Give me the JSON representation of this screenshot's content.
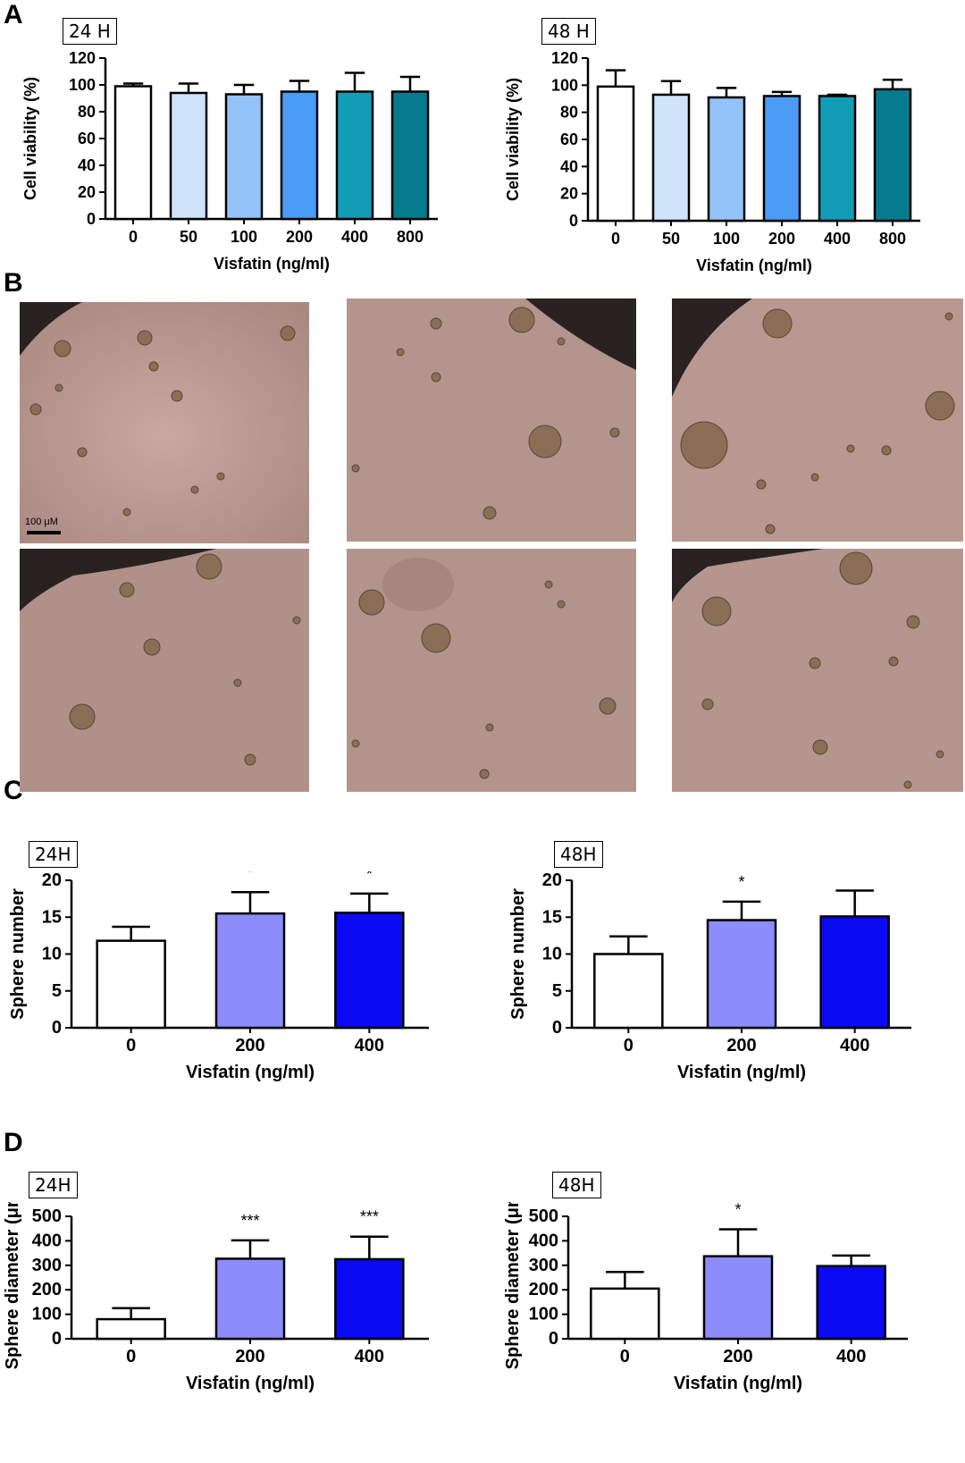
{
  "panels": {
    "A": "A",
    "B": "B",
    "C": "C",
    "D": "D"
  },
  "scale_bar": "100 μM",
  "colors": {
    "six_dose": [
      "#ffffff",
      "#cfe3fb",
      "#93c2f6",
      "#4a9cf6",
      "#139cb6",
      "#067b8d"
    ],
    "three_dose": [
      "#ffffff",
      "#8c8cfd",
      "#0a0af5"
    ]
  },
  "chart_data": [
    {
      "id": "A-24H",
      "type": "bar",
      "tag": "24 H",
      "categories": [
        "0",
        "50",
        "100",
        "200",
        "400",
        "800"
      ],
      "values": [
        99,
        94,
        93,
        95,
        95,
        95
      ],
      "errors": [
        2,
        7,
        7,
        8,
        14,
        11
      ],
      "significance": [
        "",
        "",
        "",
        "",
        "",
        ""
      ],
      "xlabel": "Visfatin (ng/ml)",
      "ylabel": "Cell viability (%)",
      "ylim": [
        0,
        120
      ],
      "yticks": [
        0,
        20,
        40,
        60,
        80,
        100,
        120
      ]
    },
    {
      "id": "A-48H",
      "type": "bar",
      "tag": "48 H",
      "categories": [
        "0",
        "50",
        "100",
        "200",
        "400",
        "800"
      ],
      "values": [
        99,
        93,
        91,
        92,
        92,
        97
      ],
      "errors": [
        12,
        10,
        7,
        3,
        1,
        7
      ],
      "significance": [
        "",
        "",
        "",
        "",
        "",
        ""
      ],
      "xlabel": "Visfatin (ng/ml)",
      "ylabel": "Cell viability (%)",
      "ylim": [
        0,
        120
      ],
      "yticks": [
        0,
        20,
        40,
        60,
        80,
        100,
        120
      ]
    },
    {
      "id": "C-24H",
      "type": "bar",
      "tag": "24H",
      "categories": [
        "0",
        "200",
        "400"
      ],
      "values": [
        11.8,
        15.5,
        15.6
      ],
      "errors": [
        1.9,
        2.9,
        2.6
      ],
      "significance": [
        "",
        "*",
        "*"
      ],
      "xlabel": "Visfatin (ng/ml)",
      "ylabel": "Sphere number",
      "ylim": [
        0,
        20
      ],
      "yticks": [
        0,
        5,
        10,
        15,
        20
      ]
    },
    {
      "id": "C-48H",
      "type": "bar",
      "tag": "48H",
      "categories": [
        "0",
        "200",
        "400"
      ],
      "values": [
        10.0,
        14.6,
        15.1
      ],
      "errors": [
        2.4,
        2.5,
        3.5
      ],
      "significance": [
        "",
        "*",
        "*"
      ],
      "xlabel": "Visfatin (ng/ml)",
      "ylabel": "Sphere number",
      "ylim": [
        0,
        20
      ],
      "yticks": [
        0,
        5,
        10,
        15,
        20
      ]
    },
    {
      "id": "D-24H",
      "type": "bar",
      "tag": "24H",
      "categories": [
        "0",
        "200",
        "400"
      ],
      "values": [
        80,
        327,
        325
      ],
      "errors": [
        45,
        75,
        92
      ],
      "significance": [
        "",
        "***",
        "***"
      ],
      "xlabel": "Visfatin (ng/ml)",
      "ylabel": "Sphere diameter (μm)",
      "ylim": [
        0,
        500
      ],
      "yticks": [
        0,
        100,
        200,
        300,
        400,
        500
      ]
    },
    {
      "id": "D-48H",
      "type": "bar",
      "tag": "48H",
      "categories": [
        "0",
        "200",
        "400"
      ],
      "values": [
        205,
        337,
        297
      ],
      "errors": [
        68,
        110,
        43
      ],
      "significance": [
        "",
        "*",
        ""
      ],
      "xlabel": "Visfatin (ng/ml)",
      "ylabel": "Sphere diameter (μm)",
      "ylim": [
        0,
        500
      ],
      "yticks": [
        0,
        100,
        200,
        300,
        400,
        500
      ]
    }
  ]
}
